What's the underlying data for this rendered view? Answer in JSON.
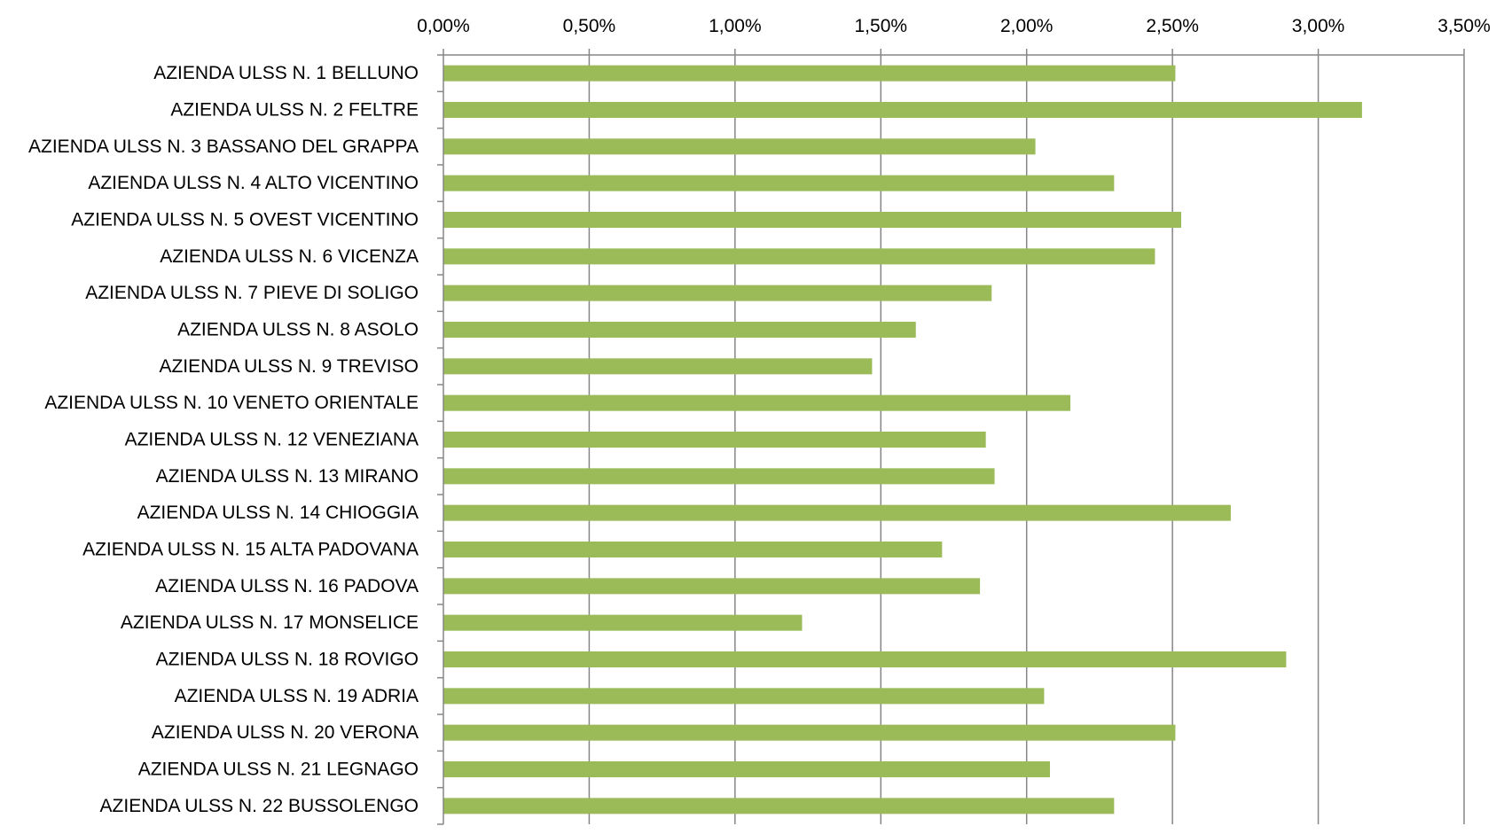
{
  "chart_data": {
    "type": "bar",
    "orientation": "horizontal",
    "title": "",
    "xlabel": "",
    "ylabel": "",
    "xlim": [
      0,
      3.5
    ],
    "x_ticks": [
      0,
      0.5,
      1.0,
      1.5,
      2.0,
      2.5,
      3.0,
      3.5
    ],
    "x_tick_labels": [
      "0,00%",
      "0,50%",
      "1,00%",
      "1,50%",
      "2,00%",
      "2,50%",
      "3,00%",
      "3,50%"
    ],
    "x_axis_position": "top",
    "grid": true,
    "legend": "none",
    "bar_color": "#9BBB59",
    "grid_color": "#868686",
    "categories": [
      "AZIENDA ULSS N. 1 BELLUNO",
      "AZIENDA ULSS N. 2 FELTRE",
      "AZIENDA ULSS N. 3 BASSANO DEL GRAPPA",
      "AZIENDA ULSS N. 4 ALTO VICENTINO",
      "AZIENDA ULSS N. 5 OVEST VICENTINO",
      "AZIENDA ULSS N. 6 VICENZA",
      "AZIENDA ULSS N. 7 PIEVE DI SOLIGO",
      "AZIENDA ULSS N. 8 ASOLO",
      "AZIENDA ULSS N. 9 TREVISO",
      "AZIENDA ULSS N. 10 VENETO ORIENTALE",
      "AZIENDA ULSS N. 12 VENEZIANA",
      "AZIENDA ULSS N. 13 MIRANO",
      "AZIENDA ULSS N. 14 CHIOGGIA",
      "AZIENDA ULSS N. 15 ALTA PADOVANA",
      "AZIENDA ULSS N. 16 PADOVA",
      "AZIENDA ULSS N. 17 MONSELICE",
      "AZIENDA ULSS N. 18 ROVIGO",
      "AZIENDA ULSS N. 19 ADRIA",
      "AZIENDA ULSS N. 20 VERONA",
      "AZIENDA ULSS N. 21 LEGNAGO",
      "AZIENDA ULSS N. 22 BUSSOLENGO"
    ],
    "values": [
      2.51,
      3.15,
      2.03,
      2.3,
      2.53,
      2.44,
      1.88,
      1.62,
      1.47,
      2.15,
      1.86,
      1.89,
      2.7,
      1.71,
      1.84,
      1.23,
      2.89,
      2.06,
      2.51,
      2.08,
      2.3
    ]
  }
}
